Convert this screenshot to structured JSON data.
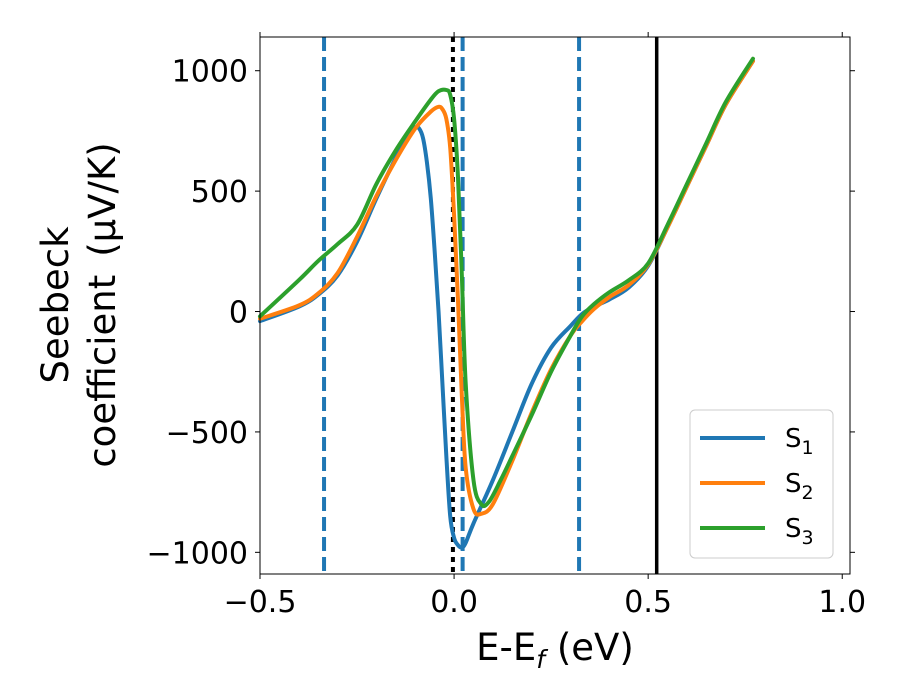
{
  "chart_data": {
    "type": "line",
    "title": "",
    "xlabel": {
      "main": "E-E",
      "sub": "f",
      "unit": " (eV)"
    },
    "ylabel": {
      "line1": "Seebeck",
      "line2": "coefficient",
      "unit": "(μV/K)"
    },
    "xlim": [
      -0.5,
      1.02
    ],
    "ylim": [
      -1090,
      1140
    ],
    "xticks": [
      -0.5,
      0.0,
      0.5,
      1.0
    ],
    "xtick_labels": [
      "−0.5",
      "0.0",
      "0.5",
      "1.0"
    ],
    "yticks": [
      -1000,
      -500,
      0,
      500,
      1000
    ],
    "ytick_labels": [
      "−1000",
      "−500",
      "0",
      "500",
      "1000"
    ],
    "grid": false,
    "legend_position": "bottom-right",
    "vlines": [
      {
        "x": -0.335,
        "style": "dashed",
        "color": "#1f77b4"
      },
      {
        "x": 0.022,
        "style": "dashed",
        "color": "#1f77b4"
      },
      {
        "x": 0.322,
        "style": "dashed",
        "color": "#1f77b4"
      },
      {
        "x": -0.003,
        "style": "dotted",
        "color": "#000000"
      },
      {
        "x": 0.522,
        "style": "solid",
        "color": "#000000"
      }
    ],
    "series": [
      {
        "name": "S",
        "sub": "1",
        "color": "#1f77b4",
        "x": [
          -0.5,
          -0.4,
          -0.35,
          -0.3,
          -0.25,
          -0.2,
          -0.15,
          -0.12,
          -0.1,
          -0.09,
          -0.08,
          -0.07,
          -0.06,
          -0.05,
          -0.04,
          -0.03,
          -0.02,
          -0.01,
          0.0,
          0.01,
          0.02,
          0.03,
          0.05,
          0.1,
          0.15,
          0.2,
          0.25,
          0.3,
          0.33,
          0.36,
          0.4,
          0.45,
          0.5,
          0.55,
          0.6,
          0.65,
          0.7,
          0.77
        ],
        "y": [
          -40,
          20,
          70,
          150,
          290,
          470,
          640,
          740,
          765,
          760,
          720,
          620,
          470,
          250,
          0,
          -300,
          -600,
          -850,
          -940,
          -970,
          -980,
          -960,
          -880,
          -700,
          -500,
          -300,
          -150,
          -60,
          -10,
          20,
          50,
          100,
          190,
          350,
          520,
          690,
          860,
          1040
        ]
      },
      {
        "name": "S",
        "sub": "2",
        "color": "#ff7f0e",
        "x": [
          -0.5,
          -0.4,
          -0.35,
          -0.3,
          -0.25,
          -0.2,
          -0.15,
          -0.1,
          -0.06,
          -0.04,
          -0.03,
          -0.02,
          -0.01,
          0.0,
          0.01,
          0.02,
          0.03,
          0.05,
          0.07,
          0.1,
          0.15,
          0.2,
          0.25,
          0.3,
          0.33,
          0.36,
          0.4,
          0.45,
          0.5,
          0.55,
          0.6,
          0.65,
          0.7,
          0.77
        ],
        "y": [
          -30,
          25,
          75,
          160,
          310,
          480,
          630,
          760,
          830,
          850,
          840,
          800,
          680,
          400,
          50,
          -350,
          -650,
          -820,
          -840,
          -800,
          -620,
          -420,
          -240,
          -100,
          -40,
          10,
          60,
          110,
          195,
          350,
          520,
          690,
          860,
          1040
        ]
      },
      {
        "name": "S",
        "sub": "3",
        "color": "#2ca02c",
        "x": [
          -0.5,
          -0.4,
          -0.35,
          -0.3,
          -0.25,
          -0.2,
          -0.15,
          -0.1,
          -0.06,
          -0.04,
          -0.02,
          -0.01,
          0.0,
          0.01,
          0.02,
          0.03,
          0.05,
          0.07,
          0.09,
          0.12,
          0.15,
          0.2,
          0.25,
          0.3,
          0.33,
          0.36,
          0.4,
          0.45,
          0.5,
          0.55,
          0.6,
          0.65,
          0.7,
          0.77
        ],
        "y": [
          -20,
          130,
          210,
          280,
          360,
          530,
          670,
          790,
          880,
          915,
          920,
          900,
          800,
          560,
          150,
          -300,
          -700,
          -800,
          -790,
          -700,
          -600,
          -430,
          -250,
          -100,
          -20,
          30,
          80,
          130,
          200,
          360,
          530,
          700,
          870,
          1050
        ]
      }
    ]
  }
}
